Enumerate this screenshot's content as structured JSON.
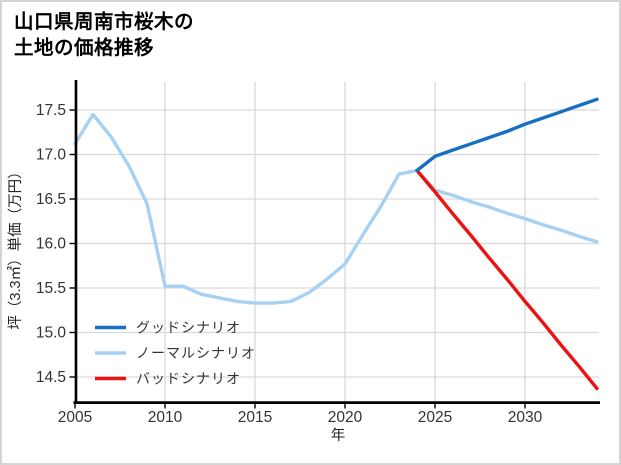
{
  "frame": {
    "background": "#ffffff",
    "border_color": "#d4d4d4"
  },
  "title": {
    "line1": "山口県周南市桜木の",
    "line2": "土地の価格推移"
  },
  "colors": {
    "grid": "#d9d9d9",
    "axis": "#000000",
    "tick_text": "#333333",
    "good_scenario": "#176fc1",
    "normal_scenario": "#a6d1f3",
    "bad_scenario": "#ee1111"
  },
  "chart_data": {
    "type": "line",
    "title": "山口県周南市桜木の土地の価格推移",
    "xlabel": "年",
    "ylabel": "坪（3.3㎡）単価（万円）",
    "x_ticks": [
      2005,
      2010,
      2015,
      2020,
      2025,
      2030
    ],
    "y_ticks": [
      14.5,
      15.0,
      15.5,
      16.0,
      16.5,
      17.0,
      17.5
    ],
    "xlim": [
      2005,
      2034
    ],
    "ylim": [
      14.2,
      17.7
    ],
    "grid": true,
    "legend_position": "lower left",
    "series": [
      {
        "id": "good",
        "name": "グッドシナリオ",
        "color": "#176fc1",
        "z": 3,
        "x": [
          2024,
          2025,
          2026,
          2027,
          2028,
          2029,
          2030,
          2031,
          2032,
          2033,
          2034
        ],
        "values": [
          16.82,
          16.98,
          17.05,
          17.12,
          17.19,
          17.26,
          17.34,
          17.41,
          17.48,
          17.55,
          17.62
        ]
      },
      {
        "id": "normal",
        "name": "ノーマルシナリオ",
        "color": "#a6d1f3",
        "z": 1,
        "x": [
          2005,
          2006,
          2007,
          2008,
          2009,
          2010,
          2011,
          2012,
          2013,
          2014,
          2015,
          2016,
          2017,
          2018,
          2019,
          2020,
          2021,
          2022,
          2023,
          2024,
          2025,
          2026,
          2027,
          2028,
          2029,
          2030,
          2031,
          2032,
          2033,
          2034
        ],
        "values": [
          17.12,
          17.45,
          17.2,
          16.87,
          16.45,
          15.52,
          15.52,
          15.43,
          15.39,
          15.35,
          15.33,
          15.33,
          15.35,
          15.45,
          15.6,
          15.77,
          16.1,
          16.42,
          16.78,
          16.82,
          16.6,
          16.54,
          16.47,
          16.41,
          16.34,
          16.28,
          16.21,
          16.15,
          16.08,
          16.02
        ]
      },
      {
        "id": "bad",
        "name": "バッドシナリオ",
        "color": "#ee1111",
        "z": 2,
        "x": [
          2024,
          2025,
          2026,
          2027,
          2028,
          2029,
          2030,
          2031,
          2032,
          2033,
          2034
        ],
        "values": [
          16.82,
          16.58,
          16.33,
          16.09,
          15.84,
          15.6,
          15.35,
          15.11,
          14.86,
          14.62,
          14.37
        ]
      }
    ]
  }
}
